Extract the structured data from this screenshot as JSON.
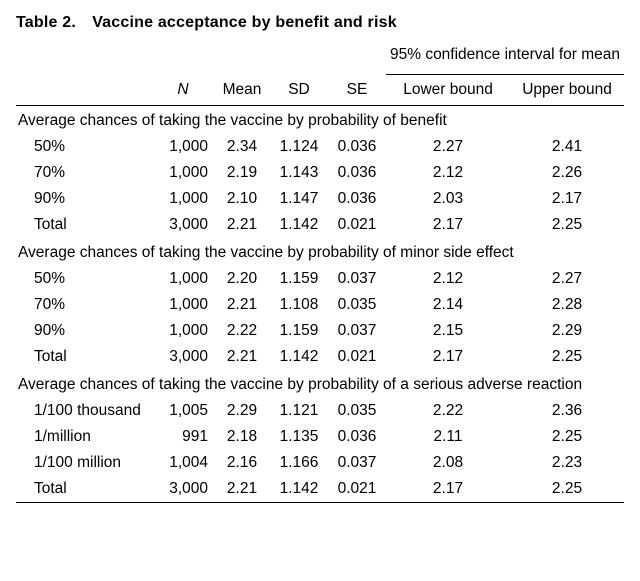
{
  "title": "Table 2. Vaccine acceptance by benefit and risk",
  "ci_header": "95% confidence interval for mean",
  "columns": {
    "n": "N",
    "mean": "Mean",
    "sd": "SD",
    "se": "SE",
    "lb": "Lower bound",
    "ub": "Upper bound"
  },
  "sections": [
    {
      "heading": "Average chances of taking the vaccine by probability of benefit",
      "rows": [
        {
          "label": "50%",
          "n": "1,000",
          "mean": "2.34",
          "sd": "1.124",
          "se": "0.036",
          "lb": "2.27",
          "ub": "2.41"
        },
        {
          "label": "70%",
          "n": "1,000",
          "mean": "2.19",
          "sd": "1.143",
          "se": "0.036",
          "lb": "2.12",
          "ub": "2.26"
        },
        {
          "label": "90%",
          "n": "1,000",
          "mean": "2.10",
          "sd": "1.147",
          "se": "0.036",
          "lb": "2.03",
          "ub": "2.17"
        },
        {
          "label": "Total",
          "n": "3,000",
          "mean": "2.21",
          "sd": "1.142",
          "se": "0.021",
          "lb": "2.17",
          "ub": "2.25"
        }
      ]
    },
    {
      "heading": "Average chances of taking the vaccine by probability of minor side effect",
      "rows": [
        {
          "label": "50%",
          "n": "1,000",
          "mean": "2.20",
          "sd": "1.159",
          "se": "0.037",
          "lb": "2.12",
          "ub": "2.27"
        },
        {
          "label": "70%",
          "n": "1,000",
          "mean": "2.21",
          "sd": "1.108",
          "se": "0.035",
          "lb": "2.14",
          "ub": "2.28"
        },
        {
          "label": "90%",
          "n": "1,000",
          "mean": "2.22",
          "sd": "1.159",
          "se": "0.037",
          "lb": "2.15",
          "ub": "2.29"
        },
        {
          "label": "Total",
          "n": "3,000",
          "mean": "2.21",
          "sd": "1.142",
          "se": "0.021",
          "lb": "2.17",
          "ub": "2.25"
        }
      ]
    },
    {
      "heading": "Average chances of taking the vaccine by probability of a serious adverse reaction",
      "rows": [
        {
          "label": "1/100 thousand",
          "n": "1,005",
          "mean": "2.29",
          "sd": "1.121",
          "se": "0.035",
          "lb": "2.22",
          "ub": "2.36"
        },
        {
          "label": "1/million",
          "n": "991",
          "mean": "2.18",
          "sd": "1.135",
          "se": "0.036",
          "lb": "2.11",
          "ub": "2.25"
        },
        {
          "label": "1/100 million",
          "n": "1,004",
          "mean": "2.16",
          "sd": "1.166",
          "se": "0.037",
          "lb": "2.08",
          "ub": "2.23"
        },
        {
          "label": "Total",
          "n": "3,000",
          "mean": "2.21",
          "sd": "1.142",
          "se": "0.021",
          "lb": "2.17",
          "ub": "2.25"
        }
      ]
    }
  ]
}
